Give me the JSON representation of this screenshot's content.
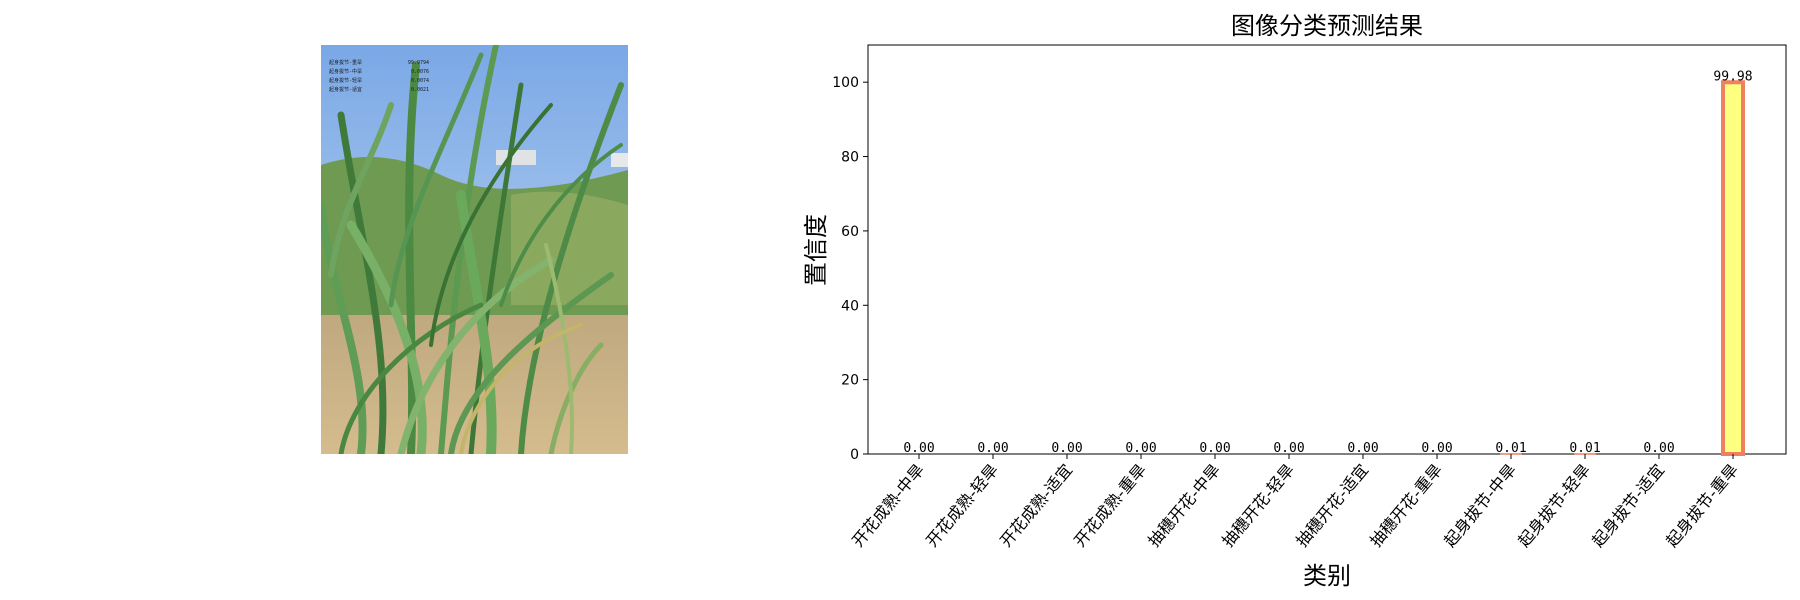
{
  "photo_overlay": [
    {
      "label": "起身拔节-重旱",
      "value": "99.9794"
    },
    {
      "label": "起身拔节-中旱",
      "value": "0.0076"
    },
    {
      "label": "起身拔节-轻旱",
      "value": "0.0074"
    },
    {
      "label": "起身拔节-适宜",
      "value": "0.0021"
    }
  ],
  "chart_data": {
    "type": "bar",
    "title": "图像分类预测结果",
    "xlabel": "类别",
    "ylabel": "置信度",
    "categories": [
      "开花成熟-中旱",
      "开花成熟-轻旱",
      "开花成熟-适宜",
      "开花成熟-重旱",
      "抽穗开花-中旱",
      "抽穗开花-轻旱",
      "抽穗开花-适宜",
      "抽穗开花-重旱",
      "起身拔节-中旱",
      "起身拔节-轻旱",
      "起身拔节-适宜",
      "起身拔节-重旱"
    ],
    "values": [
      0.0,
      0.0,
      0.0,
      0.0,
      0.0,
      0.0,
      0.0,
      0.0,
      0.01,
      0.01,
      0.0,
      99.98
    ],
    "value_labels": [
      "0.00",
      "0.00",
      "0.00",
      "0.00",
      "0.00",
      "0.00",
      "0.00",
      "0.00",
      "0.01",
      "0.01",
      "0.00",
      "99.98"
    ],
    "yticks": [
      "0",
      "20",
      "40",
      "60",
      "80",
      "100"
    ],
    "ylim": [
      0,
      110
    ],
    "grid": false,
    "bar_fill": "#ffff80",
    "bar_edge": "#f08060"
  }
}
